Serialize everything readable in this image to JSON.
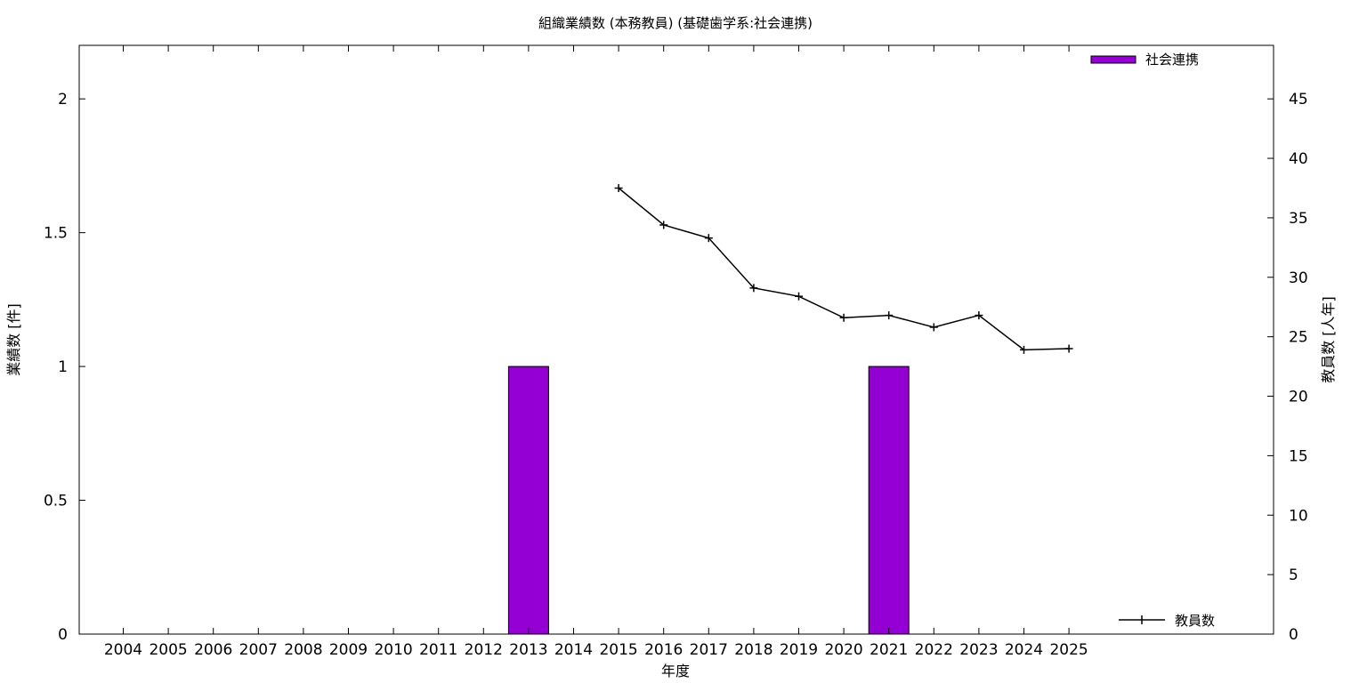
{
  "chart_data": {
    "type": "bar",
    "title": "組織業績数 (本務教員) (基礎歯学系:社会連携)",
    "xlabel": "年度",
    "ylabel": "業績数 [件]",
    "y2label": "教員数 [人年]",
    "categories": [
      "2004",
      "2005",
      "2006",
      "2007",
      "2008",
      "2009",
      "2010",
      "2011",
      "2012",
      "2013",
      "2014",
      "2015",
      "2016",
      "2017",
      "2018",
      "2019",
      "2020",
      "2021",
      "2022",
      "2023",
      "2024",
      "2025"
    ],
    "ylim": [
      0,
      2.2
    ],
    "y2lim": [
      0,
      49.5
    ],
    "yticks": [
      0,
      0.5,
      1,
      1.5,
      2
    ],
    "ytick_labels": [
      "0",
      "0.5",
      "1",
      "1.5",
      "2"
    ],
    "y2ticks": [
      0,
      5,
      10,
      15,
      20,
      25,
      30,
      35,
      40,
      45
    ],
    "grid": false,
    "series": [
      {
        "name": "社会連携",
        "kind": "bar",
        "axis": "left",
        "color": "#9400d3",
        "values": [
          0,
          0,
          0,
          0,
          0,
          0,
          0,
          0,
          0,
          1,
          0,
          0,
          0,
          0,
          0,
          0,
          0,
          1,
          0,
          0,
          0,
          0
        ]
      },
      {
        "name": "教員数",
        "kind": "line",
        "axis": "right",
        "color": "#000000",
        "marker": "plus",
        "values": [
          null,
          null,
          null,
          null,
          null,
          null,
          null,
          null,
          null,
          null,
          null,
          37.5,
          34.4,
          33.3,
          29.1,
          28.4,
          26.6,
          26.8,
          25.8,
          26.8,
          23.9,
          24.0
        ]
      }
    ],
    "legend": [
      {
        "name": "社会連携",
        "placement": "top-right"
      },
      {
        "name": "教員数",
        "placement": "bottom-right"
      }
    ]
  }
}
